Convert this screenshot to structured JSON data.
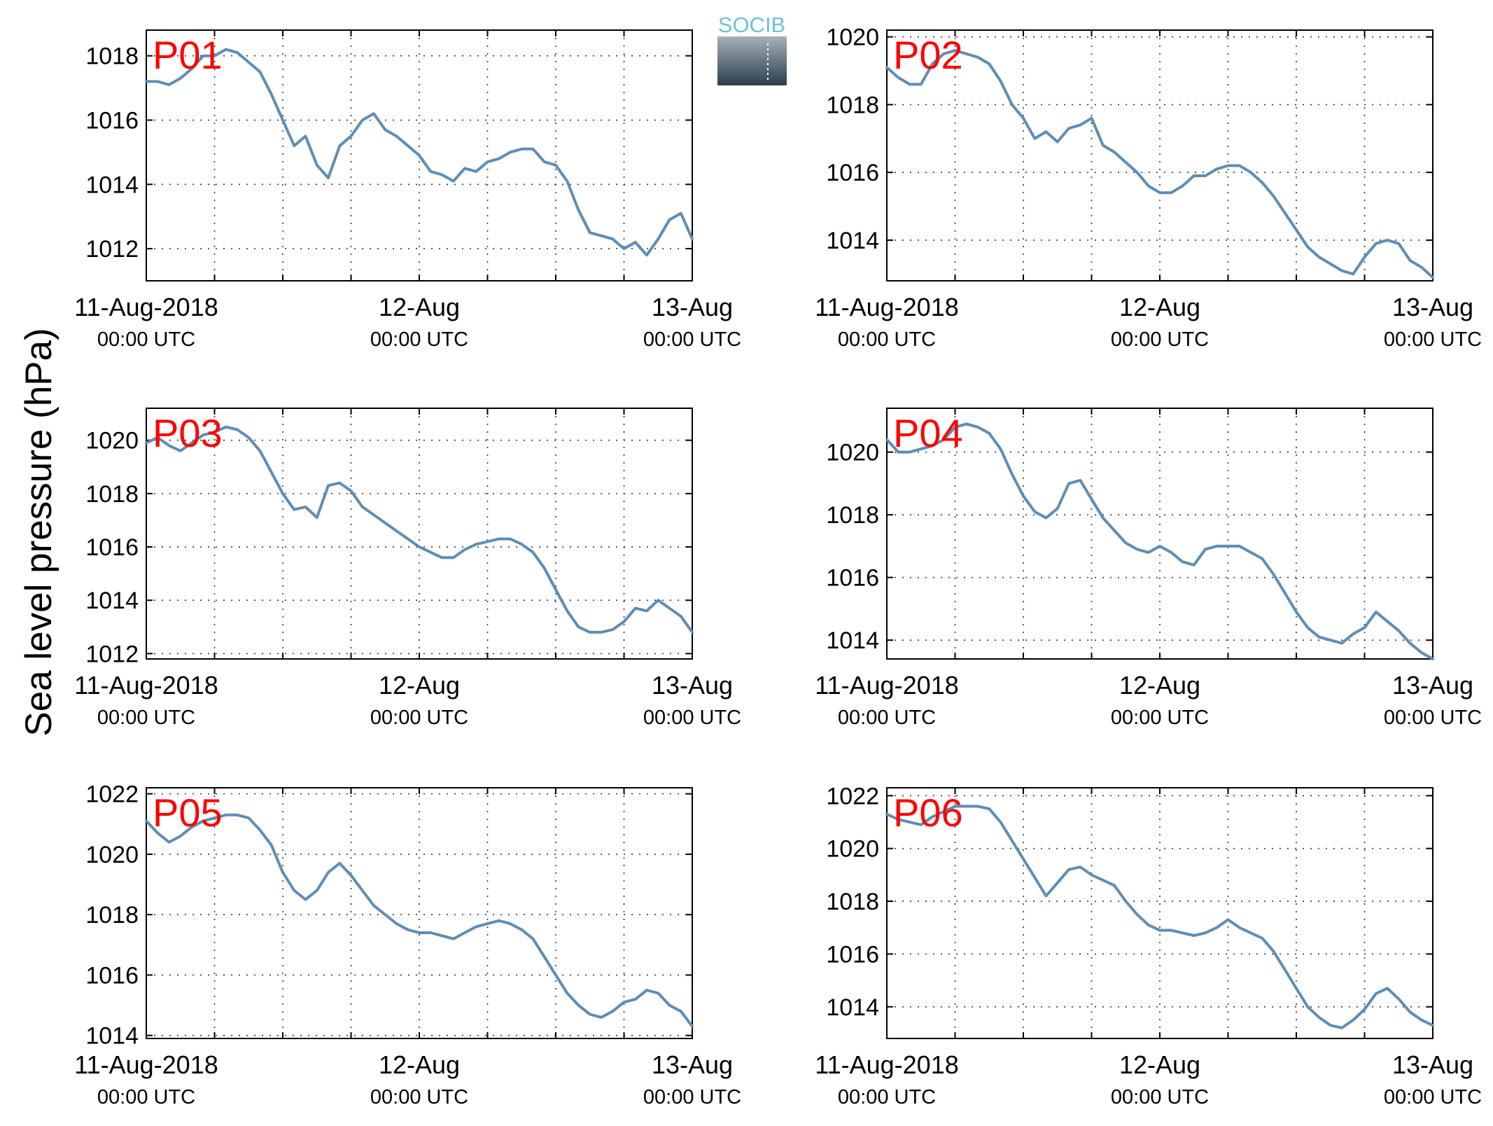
{
  "figure": {
    "ylabel": "Sea level pressure (hPa)",
    "logo": {
      "text": "SOCIB"
    },
    "colors": {
      "line": "#5f8db4",
      "panel_label": "#ff0000",
      "axis": "#000000",
      "grid": "#333333",
      "logo_text": "#6cc3d5",
      "logo_top": "#a7b1b8",
      "logo_bottom": "#2c3e4c"
    },
    "x_tick_labels": [
      {
        "top": "11-Aug-2018",
        "bottom": "00:00 UTC"
      },
      {
        "top": "12-Aug",
        "bottom": "00:00 UTC"
      },
      {
        "top": "13-Aug",
        "bottom": "00:00 UTC"
      }
    ]
  },
  "chart_data": [
    {
      "type": "line",
      "panel": "P01",
      "x_unit": "hours since 11-Aug-2018 00:00 UTC",
      "xlim": [
        0,
        48
      ],
      "x_major_ticks": [
        0,
        24,
        48
      ],
      "x_minor_ticks": [
        6,
        12,
        18,
        30,
        36,
        42
      ],
      "ylim": [
        1011,
        1018.8
      ],
      "yticks": [
        1012,
        1014,
        1016,
        1018
      ],
      "grid": true,
      "x": [
        0,
        1,
        2,
        3,
        4,
        5,
        6,
        7,
        8,
        9,
        10,
        11,
        12,
        13,
        14,
        15,
        16,
        17,
        18,
        19,
        20,
        21,
        22,
        23,
        24,
        25,
        26,
        27,
        28,
        29,
        30,
        31,
        32,
        33,
        34,
        35,
        36,
        37,
        38,
        39,
        40,
        41,
        42,
        43,
        44,
        45,
        46,
        47,
        48
      ],
      "y": [
        1017.2,
        1017.2,
        1017.1,
        1017.3,
        1017.6,
        1018.0,
        1018.0,
        1018.2,
        1018.1,
        1017.8,
        1017.5,
        1016.8,
        1016.0,
        1015.2,
        1015.5,
        1014.6,
        1014.2,
        1015.2,
        1015.5,
        1016.0,
        1016.2,
        1015.7,
        1015.5,
        1015.2,
        1014.9,
        1014.4,
        1014.3,
        1014.1,
        1014.5,
        1014.4,
        1014.7,
        1014.8,
        1015.0,
        1015.1,
        1015.1,
        1014.7,
        1014.6,
        1014.1,
        1013.2,
        1012.5,
        1012.4,
        1012.3,
        1012.0,
        1012.2,
        1011.8,
        1012.3,
        1012.9,
        1013.1,
        1012.3
      ]
    },
    {
      "type": "line",
      "panel": "P02",
      "x_unit": "hours since 11-Aug-2018 00:00 UTC",
      "xlim": [
        0,
        48
      ],
      "x_major_ticks": [
        0,
        24,
        48
      ],
      "x_minor_ticks": [
        6,
        12,
        18,
        30,
        36,
        42
      ],
      "ylim": [
        1012.8,
        1020.2
      ],
      "yticks": [
        1014,
        1016,
        1018,
        1020
      ],
      "grid": true,
      "x": [
        0,
        1,
        2,
        3,
        4,
        5,
        6,
        7,
        8,
        9,
        10,
        11,
        12,
        13,
        14,
        15,
        16,
        17,
        18,
        19,
        20,
        21,
        22,
        23,
        24,
        25,
        26,
        27,
        28,
        29,
        30,
        31,
        32,
        33,
        34,
        35,
        36,
        37,
        38,
        39,
        40,
        41,
        42,
        43,
        44,
        45,
        46,
        47,
        48
      ],
      "y": [
        1019.1,
        1018.8,
        1018.6,
        1018.6,
        1019.2,
        1019.5,
        1019.6,
        1019.5,
        1019.4,
        1019.2,
        1018.7,
        1018.0,
        1017.6,
        1017.0,
        1017.2,
        1016.9,
        1017.3,
        1017.4,
        1017.6,
        1016.8,
        1016.6,
        1016.3,
        1016.0,
        1015.6,
        1015.4,
        1015.4,
        1015.6,
        1015.9,
        1015.9,
        1016.1,
        1016.2,
        1016.2,
        1016.0,
        1015.7,
        1015.3,
        1014.8,
        1014.3,
        1013.8,
        1013.5,
        1013.3,
        1013.1,
        1013.0,
        1013.5,
        1013.9,
        1014.0,
        1013.9,
        1013.4,
        1013.2,
        1012.9
      ]
    },
    {
      "type": "line",
      "panel": "P03",
      "x_unit": "hours since 11-Aug-2018 00:00 UTC",
      "xlim": [
        0,
        48
      ],
      "x_major_ticks": [
        0,
        24,
        48
      ],
      "x_minor_ticks": [
        6,
        12,
        18,
        30,
        36,
        42
      ],
      "ylim": [
        1011.8,
        1021.2
      ],
      "yticks": [
        1012,
        1014,
        1016,
        1018,
        1020
      ],
      "grid": true,
      "x": [
        0,
        1,
        2,
        3,
        4,
        5,
        6,
        7,
        8,
        9,
        10,
        11,
        12,
        13,
        14,
        15,
        16,
        17,
        18,
        19,
        20,
        21,
        22,
        23,
        24,
        25,
        26,
        27,
        28,
        29,
        30,
        31,
        32,
        33,
        34,
        35,
        36,
        37,
        38,
        39,
        40,
        41,
        42,
        43,
        44,
        45,
        46,
        47,
        48
      ],
      "y": [
        1019.9,
        1020.1,
        1019.8,
        1019.6,
        1019.9,
        1020.2,
        1020.3,
        1020.5,
        1020.4,
        1020.1,
        1019.6,
        1018.8,
        1018.0,
        1017.4,
        1017.5,
        1017.1,
        1018.3,
        1018.4,
        1018.1,
        1017.5,
        1017.2,
        1016.9,
        1016.6,
        1016.3,
        1016.0,
        1015.8,
        1015.6,
        1015.6,
        1015.9,
        1016.1,
        1016.2,
        1016.3,
        1016.3,
        1016.1,
        1015.8,
        1015.2,
        1014.4,
        1013.6,
        1013.0,
        1012.8,
        1012.8,
        1012.9,
        1013.2,
        1013.7,
        1013.6,
        1014.0,
        1013.7,
        1013.4,
        1012.8
      ]
    },
    {
      "type": "line",
      "panel": "P04",
      "x_unit": "hours since 11-Aug-2018 00:00 UTC",
      "xlim": [
        0,
        48
      ],
      "x_major_ticks": [
        0,
        24,
        48
      ],
      "x_minor_ticks": [
        6,
        12,
        18,
        30,
        36,
        42
      ],
      "ylim": [
        1013.4,
        1021.4
      ],
      "yticks": [
        1014,
        1016,
        1018,
        1020
      ],
      "grid": true,
      "x": [
        0,
        1,
        2,
        3,
        4,
        5,
        6,
        7,
        8,
        9,
        10,
        11,
        12,
        13,
        14,
        15,
        16,
        17,
        18,
        19,
        20,
        21,
        22,
        23,
        24,
        25,
        26,
        27,
        28,
        29,
        30,
        31,
        32,
        33,
        34,
        35,
        36,
        37,
        38,
        39,
        40,
        41,
        42,
        43,
        44,
        45,
        46,
        47,
        48
      ],
      "y": [
        1020.4,
        1020.0,
        1020.0,
        1020.1,
        1020.2,
        1020.4,
        1020.8,
        1020.9,
        1020.8,
        1020.6,
        1020.1,
        1019.3,
        1018.6,
        1018.1,
        1017.9,
        1018.2,
        1019.0,
        1019.1,
        1018.5,
        1017.9,
        1017.5,
        1017.1,
        1016.9,
        1016.8,
        1017.0,
        1016.8,
        1016.5,
        1016.4,
        1016.9,
        1017.0,
        1017.0,
        1017.0,
        1016.8,
        1016.6,
        1016.1,
        1015.5,
        1014.9,
        1014.4,
        1014.1,
        1014.0,
        1013.9,
        1014.2,
        1014.4,
        1014.9,
        1014.6,
        1014.3,
        1013.9,
        1013.6,
        1013.4
      ]
    },
    {
      "type": "line",
      "panel": "P05",
      "x_unit": "hours since 11-Aug-2018 00:00 UTC",
      "xlim": [
        0,
        48
      ],
      "x_major_ticks": [
        0,
        24,
        48
      ],
      "x_minor_ticks": [
        6,
        12,
        18,
        30,
        36,
        42
      ],
      "ylim": [
        1013.9,
        1022.2
      ],
      "yticks": [
        1014,
        1016,
        1018,
        1020,
        1022
      ],
      "grid": true,
      "x": [
        0,
        1,
        2,
        3,
        4,
        5,
        6,
        7,
        8,
        9,
        10,
        11,
        12,
        13,
        14,
        15,
        16,
        17,
        18,
        19,
        20,
        21,
        22,
        23,
        24,
        25,
        26,
        27,
        28,
        29,
        30,
        31,
        32,
        33,
        34,
        35,
        36,
        37,
        38,
        39,
        40,
        41,
        42,
        43,
        44,
        45,
        46,
        47,
        48
      ],
      "y": [
        1021.1,
        1020.7,
        1020.4,
        1020.6,
        1020.9,
        1021.1,
        1021.2,
        1021.3,
        1021.3,
        1021.2,
        1020.8,
        1020.3,
        1019.4,
        1018.8,
        1018.5,
        1018.8,
        1019.4,
        1019.7,
        1019.3,
        1018.8,
        1018.3,
        1018.0,
        1017.7,
        1017.5,
        1017.4,
        1017.4,
        1017.3,
        1017.2,
        1017.4,
        1017.6,
        1017.7,
        1017.8,
        1017.7,
        1017.5,
        1017.2,
        1016.6,
        1016.0,
        1015.4,
        1015.0,
        1014.7,
        1014.6,
        1014.8,
        1015.1,
        1015.2,
        1015.5,
        1015.4,
        1015.0,
        1014.8,
        1014.3
      ]
    },
    {
      "type": "line",
      "panel": "P06",
      "x_unit": "hours since 11-Aug-2018 00:00 UTC",
      "xlim": [
        0,
        48
      ],
      "x_major_ticks": [
        0,
        24,
        48
      ],
      "x_minor_ticks": [
        6,
        12,
        18,
        30,
        36,
        42
      ],
      "ylim": [
        1012.8,
        1022.3
      ],
      "yticks": [
        1014,
        1016,
        1018,
        1020,
        1022
      ],
      "grid": true,
      "x": [
        0,
        1,
        2,
        3,
        4,
        5,
        6,
        7,
        8,
        9,
        10,
        11,
        12,
        13,
        14,
        15,
        16,
        17,
        18,
        19,
        20,
        21,
        22,
        23,
        24,
        25,
        26,
        27,
        28,
        29,
        30,
        31,
        32,
        33,
        34,
        35,
        36,
        37,
        38,
        39,
        40,
        41,
        42,
        43,
        44,
        45,
        46,
        47,
        48
      ],
      "y": [
        1021.3,
        1021.1,
        1021.0,
        1020.9,
        1021.2,
        1021.4,
        1021.6,
        1021.6,
        1021.6,
        1021.5,
        1021.0,
        1020.3,
        1019.6,
        1018.9,
        1018.2,
        1018.7,
        1019.2,
        1019.3,
        1019.0,
        1018.8,
        1018.6,
        1018.0,
        1017.5,
        1017.1,
        1016.9,
        1016.9,
        1016.8,
        1016.7,
        1016.8,
        1017.0,
        1017.3,
        1017.0,
        1016.8,
        1016.6,
        1016.1,
        1015.4,
        1014.7,
        1014.0,
        1013.6,
        1013.3,
        1013.2,
        1013.5,
        1013.9,
        1014.5,
        1014.7,
        1014.3,
        1013.8,
        1013.5,
        1013.3
      ]
    }
  ]
}
